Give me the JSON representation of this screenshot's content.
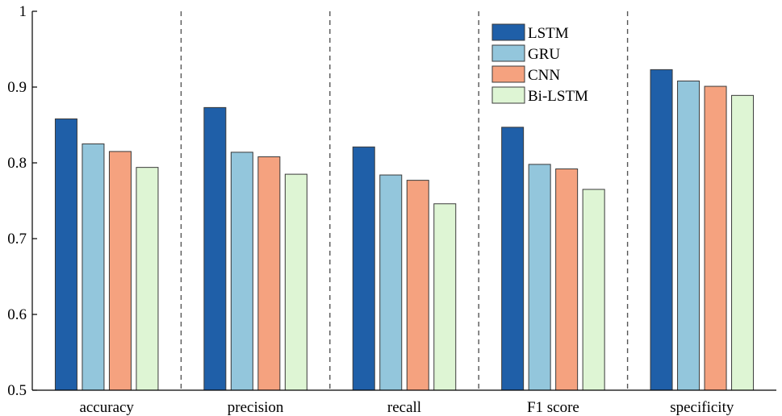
{
  "chart_data": {
    "type": "bar",
    "title": "",
    "xlabel": "",
    "ylabel": "",
    "categories": [
      "accuracy",
      "precision",
      "recall",
      "F1 score",
      "specificity"
    ],
    "ylim": [
      0.5,
      1
    ],
    "yticks": [
      "0.5",
      "0.6",
      "0.7",
      "0.8",
      "0.9",
      "1"
    ],
    "grid": false,
    "legend_position": "top-right",
    "series": [
      {
        "name": "LSTM",
        "color": "#1f5fa8",
        "values": [
          0.858,
          0.873,
          0.821,
          0.847,
          0.923
        ]
      },
      {
        "name": "GRU",
        "color": "#93c6dc",
        "values": [
          0.825,
          0.814,
          0.784,
          0.798,
          0.908
        ]
      },
      {
        "name": "CNN",
        "color": "#f5a27f",
        "values": [
          0.815,
          0.808,
          0.777,
          0.792,
          0.901
        ]
      },
      {
        "name": "Bi-LSTM",
        "color": "#def5d4",
        "values": [
          0.794,
          0.785,
          0.746,
          0.765,
          0.889
        ]
      }
    ]
  }
}
